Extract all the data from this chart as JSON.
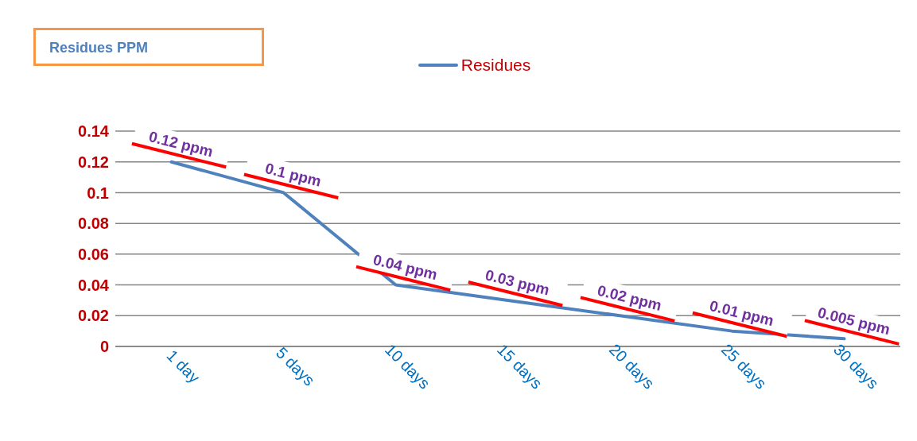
{
  "chart_data": {
    "type": "line",
    "title": "Residues PPM",
    "categories": [
      "1 day",
      "5 days",
      "10 days",
      "15 days",
      "20 days",
      "25 days",
      "30 days"
    ],
    "series": [
      {
        "name": "Residues",
        "color": "#4f81bd",
        "values": [
          0.12,
          0.1,
          0.04,
          0.03,
          0.02,
          0.01,
          0.005
        ],
        "value_labels": [
          "0.12 ppm",
          "0.1 ppm",
          "0.04 ppm",
          "0.03 ppm",
          "0.02 ppm",
          "0.01 ppm",
          "0.005 ppm"
        ]
      }
    ],
    "ylim": [
      0,
      0.14
    ],
    "yticks": [
      0,
      0.02,
      0.04,
      0.06,
      0.08,
      0.1,
      0.12,
      0.14
    ],
    "grid": "y",
    "legend": "top",
    "marker": "none",
    "line_style": "solid"
  }
}
